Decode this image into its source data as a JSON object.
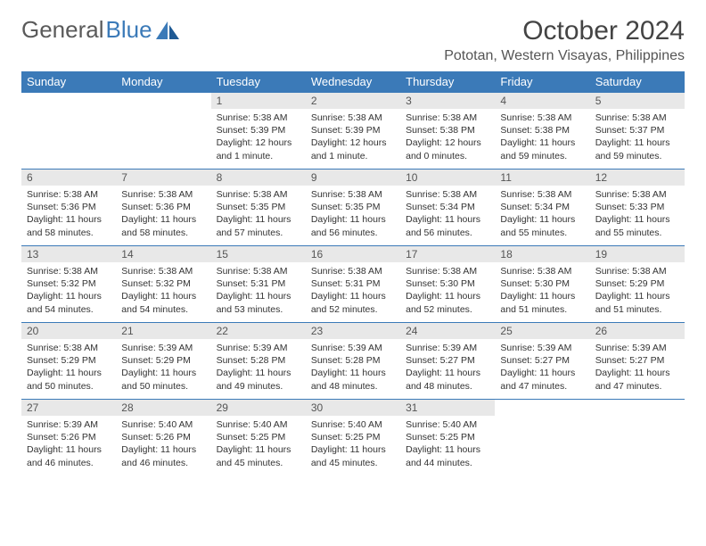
{
  "logo": {
    "part1": "General",
    "part2": "Blue"
  },
  "title": "October 2024",
  "location": "Pototan, Western Visayas, Philippines",
  "colors": {
    "header_bg": "#3b7ab8",
    "header_text": "#ffffff",
    "daynum_bg": "#e8e8e8",
    "border": "#3b7ab8",
    "text": "#333333",
    "logo_gray": "#5a5a5a",
    "logo_blue": "#3b7ab8"
  },
  "typography": {
    "month_title_size": 30,
    "location_size": 16,
    "dayheader_size": 13,
    "daynum_size": 12,
    "daytext_size": 10.5
  },
  "day_headers": [
    "Sunday",
    "Monday",
    "Tuesday",
    "Wednesday",
    "Thursday",
    "Friday",
    "Saturday"
  ],
  "weeks": [
    [
      {
        "n": "",
        "sr": "",
        "ss": "",
        "dl": ""
      },
      {
        "n": "",
        "sr": "",
        "ss": "",
        "dl": ""
      },
      {
        "n": "1",
        "sr": "Sunrise: 5:38 AM",
        "ss": "Sunset: 5:39 PM",
        "dl": "Daylight: 12 hours and 1 minute."
      },
      {
        "n": "2",
        "sr": "Sunrise: 5:38 AM",
        "ss": "Sunset: 5:39 PM",
        "dl": "Daylight: 12 hours and 1 minute."
      },
      {
        "n": "3",
        "sr": "Sunrise: 5:38 AM",
        "ss": "Sunset: 5:38 PM",
        "dl": "Daylight: 12 hours and 0 minutes."
      },
      {
        "n": "4",
        "sr": "Sunrise: 5:38 AM",
        "ss": "Sunset: 5:38 PM",
        "dl": "Daylight: 11 hours and 59 minutes."
      },
      {
        "n": "5",
        "sr": "Sunrise: 5:38 AM",
        "ss": "Sunset: 5:37 PM",
        "dl": "Daylight: 11 hours and 59 minutes."
      }
    ],
    [
      {
        "n": "6",
        "sr": "Sunrise: 5:38 AM",
        "ss": "Sunset: 5:36 PM",
        "dl": "Daylight: 11 hours and 58 minutes."
      },
      {
        "n": "7",
        "sr": "Sunrise: 5:38 AM",
        "ss": "Sunset: 5:36 PM",
        "dl": "Daylight: 11 hours and 58 minutes."
      },
      {
        "n": "8",
        "sr": "Sunrise: 5:38 AM",
        "ss": "Sunset: 5:35 PM",
        "dl": "Daylight: 11 hours and 57 minutes."
      },
      {
        "n": "9",
        "sr": "Sunrise: 5:38 AM",
        "ss": "Sunset: 5:35 PM",
        "dl": "Daylight: 11 hours and 56 minutes."
      },
      {
        "n": "10",
        "sr": "Sunrise: 5:38 AM",
        "ss": "Sunset: 5:34 PM",
        "dl": "Daylight: 11 hours and 56 minutes."
      },
      {
        "n": "11",
        "sr": "Sunrise: 5:38 AM",
        "ss": "Sunset: 5:34 PM",
        "dl": "Daylight: 11 hours and 55 minutes."
      },
      {
        "n": "12",
        "sr": "Sunrise: 5:38 AM",
        "ss": "Sunset: 5:33 PM",
        "dl": "Daylight: 11 hours and 55 minutes."
      }
    ],
    [
      {
        "n": "13",
        "sr": "Sunrise: 5:38 AM",
        "ss": "Sunset: 5:32 PM",
        "dl": "Daylight: 11 hours and 54 minutes."
      },
      {
        "n": "14",
        "sr": "Sunrise: 5:38 AM",
        "ss": "Sunset: 5:32 PM",
        "dl": "Daylight: 11 hours and 54 minutes."
      },
      {
        "n": "15",
        "sr": "Sunrise: 5:38 AM",
        "ss": "Sunset: 5:31 PM",
        "dl": "Daylight: 11 hours and 53 minutes."
      },
      {
        "n": "16",
        "sr": "Sunrise: 5:38 AM",
        "ss": "Sunset: 5:31 PM",
        "dl": "Daylight: 11 hours and 52 minutes."
      },
      {
        "n": "17",
        "sr": "Sunrise: 5:38 AM",
        "ss": "Sunset: 5:30 PM",
        "dl": "Daylight: 11 hours and 52 minutes."
      },
      {
        "n": "18",
        "sr": "Sunrise: 5:38 AM",
        "ss": "Sunset: 5:30 PM",
        "dl": "Daylight: 11 hours and 51 minutes."
      },
      {
        "n": "19",
        "sr": "Sunrise: 5:38 AM",
        "ss": "Sunset: 5:29 PM",
        "dl": "Daylight: 11 hours and 51 minutes."
      }
    ],
    [
      {
        "n": "20",
        "sr": "Sunrise: 5:38 AM",
        "ss": "Sunset: 5:29 PM",
        "dl": "Daylight: 11 hours and 50 minutes."
      },
      {
        "n": "21",
        "sr": "Sunrise: 5:39 AM",
        "ss": "Sunset: 5:29 PM",
        "dl": "Daylight: 11 hours and 50 minutes."
      },
      {
        "n": "22",
        "sr": "Sunrise: 5:39 AM",
        "ss": "Sunset: 5:28 PM",
        "dl": "Daylight: 11 hours and 49 minutes."
      },
      {
        "n": "23",
        "sr": "Sunrise: 5:39 AM",
        "ss": "Sunset: 5:28 PM",
        "dl": "Daylight: 11 hours and 48 minutes."
      },
      {
        "n": "24",
        "sr": "Sunrise: 5:39 AM",
        "ss": "Sunset: 5:27 PM",
        "dl": "Daylight: 11 hours and 48 minutes."
      },
      {
        "n": "25",
        "sr": "Sunrise: 5:39 AM",
        "ss": "Sunset: 5:27 PM",
        "dl": "Daylight: 11 hours and 47 minutes."
      },
      {
        "n": "26",
        "sr": "Sunrise: 5:39 AM",
        "ss": "Sunset: 5:27 PM",
        "dl": "Daylight: 11 hours and 47 minutes."
      }
    ],
    [
      {
        "n": "27",
        "sr": "Sunrise: 5:39 AM",
        "ss": "Sunset: 5:26 PM",
        "dl": "Daylight: 11 hours and 46 minutes."
      },
      {
        "n": "28",
        "sr": "Sunrise: 5:40 AM",
        "ss": "Sunset: 5:26 PM",
        "dl": "Daylight: 11 hours and 46 minutes."
      },
      {
        "n": "29",
        "sr": "Sunrise: 5:40 AM",
        "ss": "Sunset: 5:25 PM",
        "dl": "Daylight: 11 hours and 45 minutes."
      },
      {
        "n": "30",
        "sr": "Sunrise: 5:40 AM",
        "ss": "Sunset: 5:25 PM",
        "dl": "Daylight: 11 hours and 45 minutes."
      },
      {
        "n": "31",
        "sr": "Sunrise: 5:40 AM",
        "ss": "Sunset: 5:25 PM",
        "dl": "Daylight: 11 hours and 44 minutes."
      },
      {
        "n": "",
        "sr": "",
        "ss": "",
        "dl": ""
      },
      {
        "n": "",
        "sr": "",
        "ss": "",
        "dl": ""
      }
    ]
  ]
}
